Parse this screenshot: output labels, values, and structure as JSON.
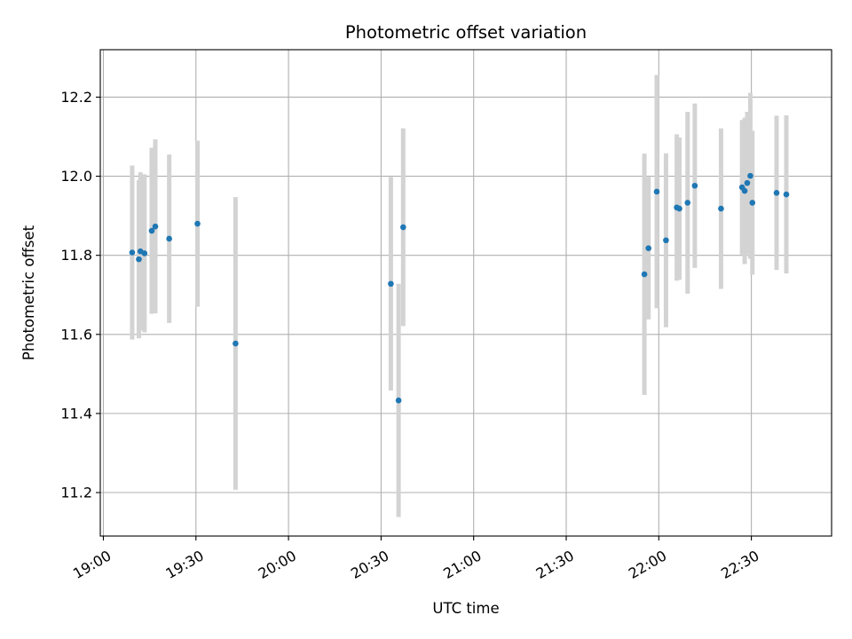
{
  "chart_data": {
    "type": "scatter",
    "title": "Photometric offset variation",
    "xlabel": "UTC time",
    "ylabel": "Photometric offset",
    "x_ticks": [
      "19:00",
      "19:30",
      "20:00",
      "20:30",
      "21:00",
      "21:30",
      "22:00",
      "22:30"
    ],
    "y_ticks": [
      "11.2",
      "11.4",
      "11.6",
      "11.8",
      "12.0",
      "12.2"
    ],
    "xlim": [
      "18:59",
      "22:56"
    ],
    "ylim": [
      11.09,
      12.32
    ],
    "grid": true,
    "point_color": "#1f77b4",
    "errorbar_color": "#d3d3d3",
    "points": [
      {
        "x": "19:09:20",
        "y": 11.807,
        "err": 0.22
      },
      {
        "x": "19:11:30",
        "y": 11.79,
        "err": 0.2
      },
      {
        "x": "19:12:00",
        "y": 11.81,
        "err": 0.2
      },
      {
        "x": "19:13:20",
        "y": 11.805,
        "err": 0.2
      },
      {
        "x": "19:15:40",
        "y": 11.862,
        "err": 0.21
      },
      {
        "x": "19:16:50",
        "y": 11.873,
        "err": 0.22
      },
      {
        "x": "19:21:20",
        "y": 11.842,
        "err": 0.213
      },
      {
        "x": "19:30:30",
        "y": 11.88,
        "err": 0.21
      },
      {
        "x": "19:42:50",
        "y": 11.577,
        "err": 0.37
      },
      {
        "x": "20:33:10",
        "y": 11.728,
        "err": 0.27
      },
      {
        "x": "20:35:40",
        "y": 11.433,
        "err": 0.295
      },
      {
        "x": "20:37:10",
        "y": 11.871,
        "err": 0.25
      },
      {
        "x": "21:55:20",
        "y": 11.752,
        "err": 0.305
      },
      {
        "x": "21:56:40",
        "y": 11.818,
        "err": 0.18
      },
      {
        "x": "21:59:20",
        "y": 11.961,
        "err": 0.295
      },
      {
        "x": "22:02:20",
        "y": 11.838,
        "err": 0.22
      },
      {
        "x": "22:05:50",
        "y": 11.921,
        "err": 0.185
      },
      {
        "x": "22:06:40",
        "y": 11.918,
        "err": 0.18
      },
      {
        "x": "22:09:20",
        "y": 11.933,
        "err": 0.23
      },
      {
        "x": "22:11:40",
        "y": 11.976,
        "err": 0.208
      },
      {
        "x": "22:20:10",
        "y": 11.918,
        "err": 0.203
      },
      {
        "x": "22:27:00",
        "y": 11.972,
        "err": 0.17
      },
      {
        "x": "22:27:50",
        "y": 11.963,
        "err": 0.185
      },
      {
        "x": "22:28:40",
        "y": 11.983,
        "err": 0.18
      },
      {
        "x": "22:29:40",
        "y": 12.001,
        "err": 0.21
      },
      {
        "x": "22:30:20",
        "y": 11.933,
        "err": 0.182
      },
      {
        "x": "22:38:10",
        "y": 11.958,
        "err": 0.195
      },
      {
        "x": "22:41:20",
        "y": 11.954,
        "err": 0.2
      }
    ]
  }
}
